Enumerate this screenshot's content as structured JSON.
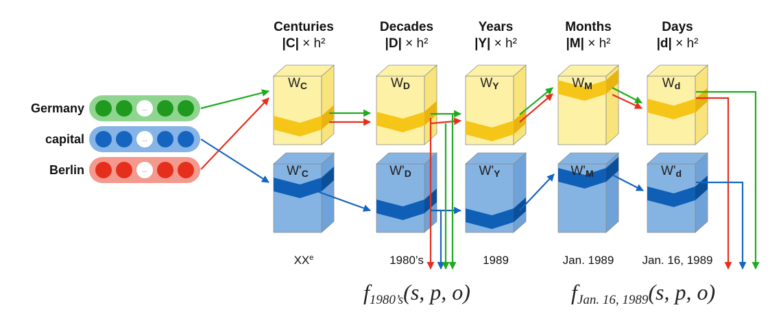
{
  "inputs": [
    {
      "label": "Germany",
      "color": "#1f9a1f",
      "light": "#8fd58f",
      "ellipsis": "..."
    },
    {
      "label": "capital",
      "color": "#1565c0",
      "light": "#87b4e6",
      "ellipsis": "..."
    },
    {
      "label": "Berlin",
      "color": "#e62e1c",
      "light": "#f4998e",
      "ellipsis": "..."
    }
  ],
  "columns": [
    {
      "title": "Centuries",
      "dims_var": "|C|",
      "dims_rest": " × h²",
      "w_base": "W",
      "w_sub": "C",
      "wp_base": "W'",
      "wp_sub": "C",
      "caption": "XX",
      "caption_sup": "e"
    },
    {
      "title": "Decades",
      "dims_var": "|D|",
      "dims_rest": " × h²",
      "w_base": "W",
      "w_sub": "D",
      "wp_base": "W'",
      "wp_sub": "D",
      "caption": "1980’s",
      "caption_sup": ""
    },
    {
      "title": "Years",
      "dims_var": "|Y|",
      "dims_rest": " × h²",
      "w_base": "W",
      "w_sub": "Y",
      "wp_base": "W'",
      "wp_sub": "Y",
      "caption": "1989",
      "caption_sup": ""
    },
    {
      "title": "Months",
      "dims_var": "|M|",
      "dims_rest": " × h²",
      "w_base": "W",
      "w_sub": "M",
      "wp_base": "W'",
      "wp_sub": "M",
      "caption": "Jan. 1989",
      "caption_sup": ""
    },
    {
      "title": "Days",
      "dims_var": "|d|",
      "dims_rest": " × h²",
      "w_base": "W",
      "w_sub": "d",
      "wp_base": "W'",
      "wp_sub": "d",
      "caption": "Jan. 16, 1989",
      "caption_sup": ""
    }
  ],
  "formulas": [
    {
      "fn": "f",
      "sub": "1980’s",
      "args": "(s, p, o)"
    },
    {
      "fn": "f",
      "sub": "Jan. 16, 1989",
      "args": "(s, p, o)"
    }
  ],
  "colors": {
    "green": "#1faa1f",
    "blue": "#1565c0",
    "red": "#e62e1c",
    "box_yellow": "#fdf1a6",
    "box_yellow_side": "#f9e47c",
    "band_yellow": "#f5c518",
    "band_yellow_side": "#e9b412",
    "box_blue": "#85b4e3",
    "box_blue_side": "#6ea2d8",
    "band_blue": "#0e5fb5",
    "band_blue_side": "#0b4f98"
  }
}
